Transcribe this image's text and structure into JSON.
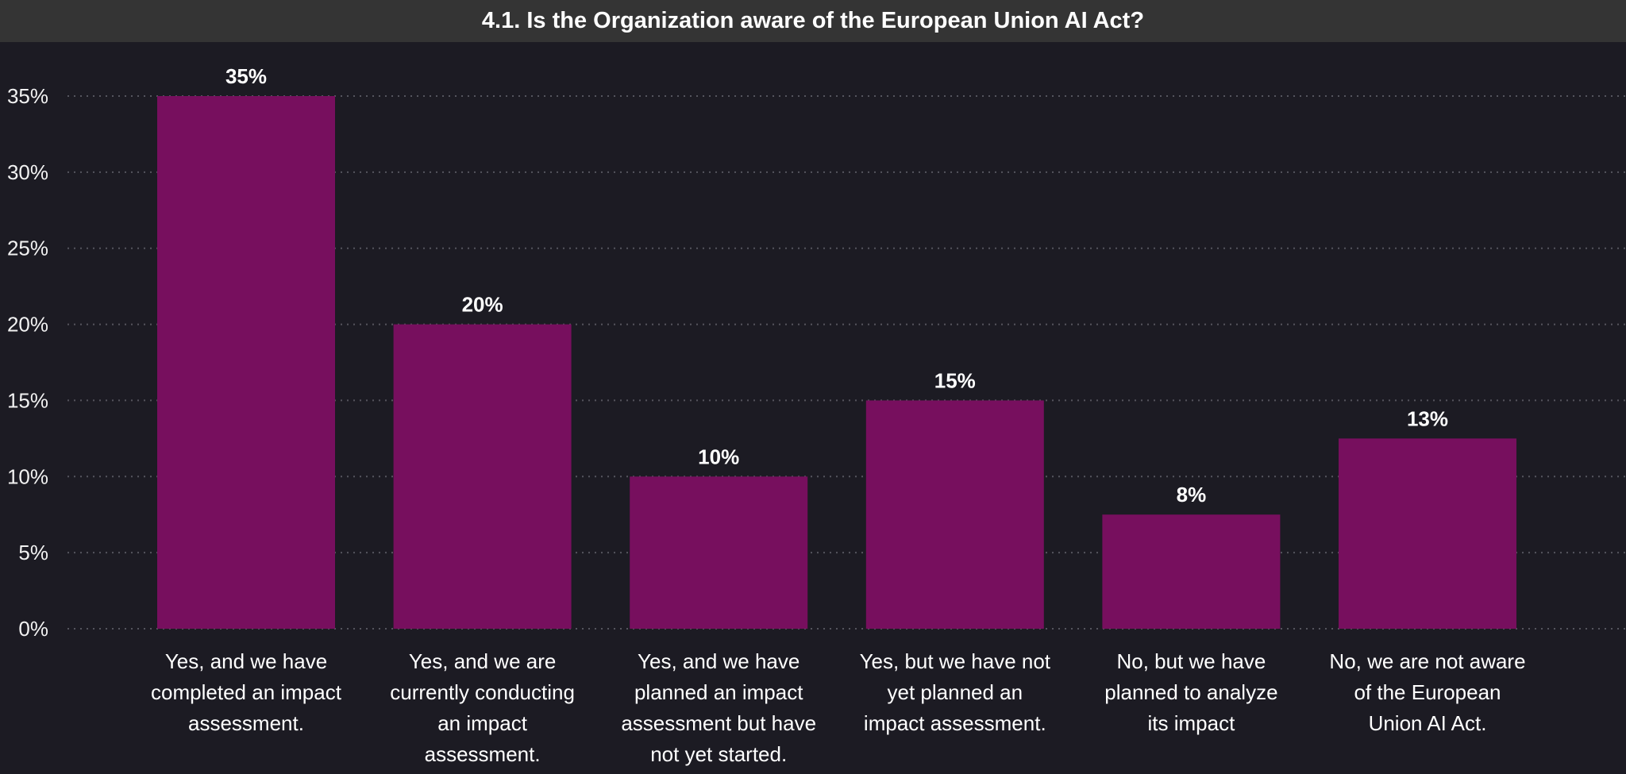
{
  "chart_data": {
    "type": "bar",
    "title": "4.1. Is the Organization aware of the European Union AI Act?",
    "categories": [
      "Yes, and we have completed an impact assessment.",
      "Yes, and we are currently conducting an impact assessment.",
      "Yes, and we have planned an impact assessment but have not yet started.",
      "Yes, but we have not yet planned an impact assessment.",
      "No, but we have planned to analyze its impact",
      "No, we are not aware of the European Union AI Act."
    ],
    "category_lines": [
      [
        "Yes, and we have",
        "completed an impact",
        "assessment."
      ],
      [
        "Yes, and we are",
        "currently conducting",
        "an impact",
        "assessment."
      ],
      [
        "Yes, and we have",
        "planned an impact",
        "assessment but have",
        "not yet started."
      ],
      [
        "Yes, but we have not",
        "yet planned an",
        "impact assessment."
      ],
      [
        "No, but we have",
        "planned to analyze",
        "its impact"
      ],
      [
        "No, we are not aware",
        "of the European",
        "Union AI Act."
      ]
    ],
    "values": [
      35,
      20,
      10,
      15,
      7.5,
      12.5
    ],
    "data_labels": [
      "35%",
      "20%",
      "10%",
      "15%",
      "8%",
      "13%"
    ],
    "yticks": [
      "0%",
      "5%",
      "10%",
      "15%",
      "20%",
      "25%",
      "30%",
      "35%"
    ],
    "ytick_values": [
      0,
      5,
      10,
      15,
      20,
      25,
      30,
      35
    ],
    "ylim": [
      0,
      35
    ],
    "xlabel": "",
    "ylabel": "",
    "grid": "horizontal dotted",
    "colors": {
      "bar": "#770f5e",
      "background": "#1c1b23",
      "title_bar": "#343434",
      "grid": "#55555e"
    }
  }
}
